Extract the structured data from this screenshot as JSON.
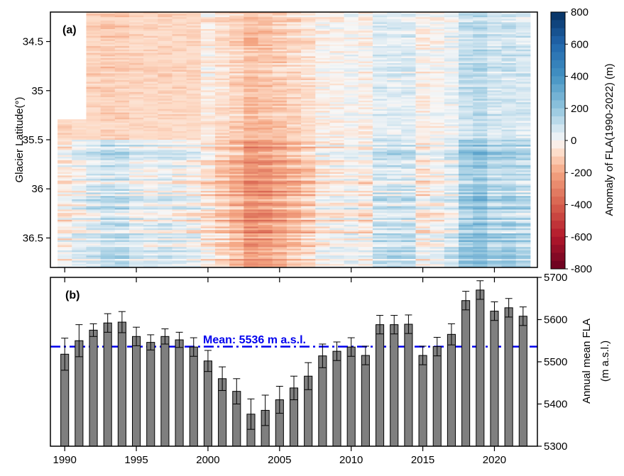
{
  "chart_data": [
    {
      "type": "heatmap",
      "panel_label": "(a)",
      "xlim": [
        1989,
        2023
      ],
      "ylim": [
        34.2,
        36.8
      ],
      "y_inverted": true,
      "ylabel": "Glacier Latitude(°)",
      "y_ticks": [
        34.5,
        35,
        35.5,
        36,
        36.5
      ],
      "y_tick_labels": [
        "34.5",
        "35",
        "35.5",
        "36",
        "36.5"
      ],
      "years": [
        1990,
        1991,
        1992,
        1993,
        1994,
        1995,
        1996,
        1997,
        1998,
        1999,
        2000,
        2001,
        2002,
        2003,
        2004,
        2005,
        2006,
        2007,
        2008,
        2009,
        2010,
        2011,
        2012,
        2013,
        2014,
        2015,
        2016,
        2017,
        2018,
        2019,
        2020,
        2021,
        2022
      ],
      "note_missing": "No data for 1990-1991 north of about 35.3°",
      "colorbar": {
        "label": "Anomaly of FLA(1990-2022) (m)",
        "min": -800,
        "max": 800,
        "ticks": [
          800,
          600,
          400,
          200,
          0,
          -200,
          -400,
          -600,
          -800
        ],
        "tick_labels": [
          "800",
          "600",
          "400",
          "200",
          "0",
          "-200",
          "-400",
          "-600",
          "-800"
        ],
        "colors": [
          "#67001f",
          "#b2182b",
          "#d6604d",
          "#f4a582",
          "#fddbc7",
          "#f7f7f7",
          "#d1e5f0",
          "#92c5de",
          "#4393c3",
          "#2166ac",
          "#053061"
        ],
        "color_values": [
          -800,
          -600,
          -400,
          -200,
          -80,
          0,
          80,
          200,
          400,
          600,
          800
        ]
      }
    },
    {
      "type": "bar",
      "panel_label": "(b)",
      "categories": [
        1990,
        1991,
        1992,
        1993,
        1994,
        1995,
        1996,
        1997,
        1998,
        1999,
        2000,
        2001,
        2002,
        2003,
        2004,
        2005,
        2006,
        2007,
        2008,
        2009,
        2010,
        2011,
        2012,
        2013,
        2014,
        2015,
        2016,
        2017,
        2018,
        2019,
        2020,
        2021,
        2022
      ],
      "values": [
        5518,
        5550,
        5575,
        5592,
        5594,
        5560,
        5546,
        5560,
        5552,
        5535,
        5502,
        5460,
        5430,
        5376,
        5385,
        5410,
        5438,
        5466,
        5514,
        5525,
        5535,
        5515,
        5588,
        5588,
        5589,
        5515,
        5536,
        5565,
        5645,
        5670,
        5620,
        5628,
        5608
      ],
      "errors": [
        38,
        38,
        15,
        22,
        25,
        22,
        18,
        18,
        18,
        22,
        25,
        28,
        30,
        36,
        36,
        32,
        28,
        32,
        28,
        22,
        22,
        22,
        22,
        22,
        22,
        22,
        22,
        25,
        22,
        22,
        22,
        22,
        22
      ],
      "bar_color": "#7f7f7f",
      "ylim": [
        5300,
        5700
      ],
      "y_ticks": [
        5300,
        5400,
        5500,
        5600,
        5700
      ],
      "y_tick_labels": [
        "5300",
        "5400",
        "5500",
        "5600",
        "5700"
      ],
      "x_ticks": [
        1990,
        1995,
        2000,
        2005,
        2010,
        2015,
        2020
      ],
      "x_tick_labels": [
        "1990",
        "1995",
        "2000",
        "2005",
        "2010",
        "2015",
        "2020"
      ],
      "xlim": [
        1989,
        2023
      ],
      "ylabel_line1": "Annual mean FLA",
      "ylabel_line2": "(m a.s.l.)",
      "mean_value": 5536,
      "mean_label": "Mean: 5536 m a.s.l.",
      "mean_color": "#0000ee"
    }
  ]
}
